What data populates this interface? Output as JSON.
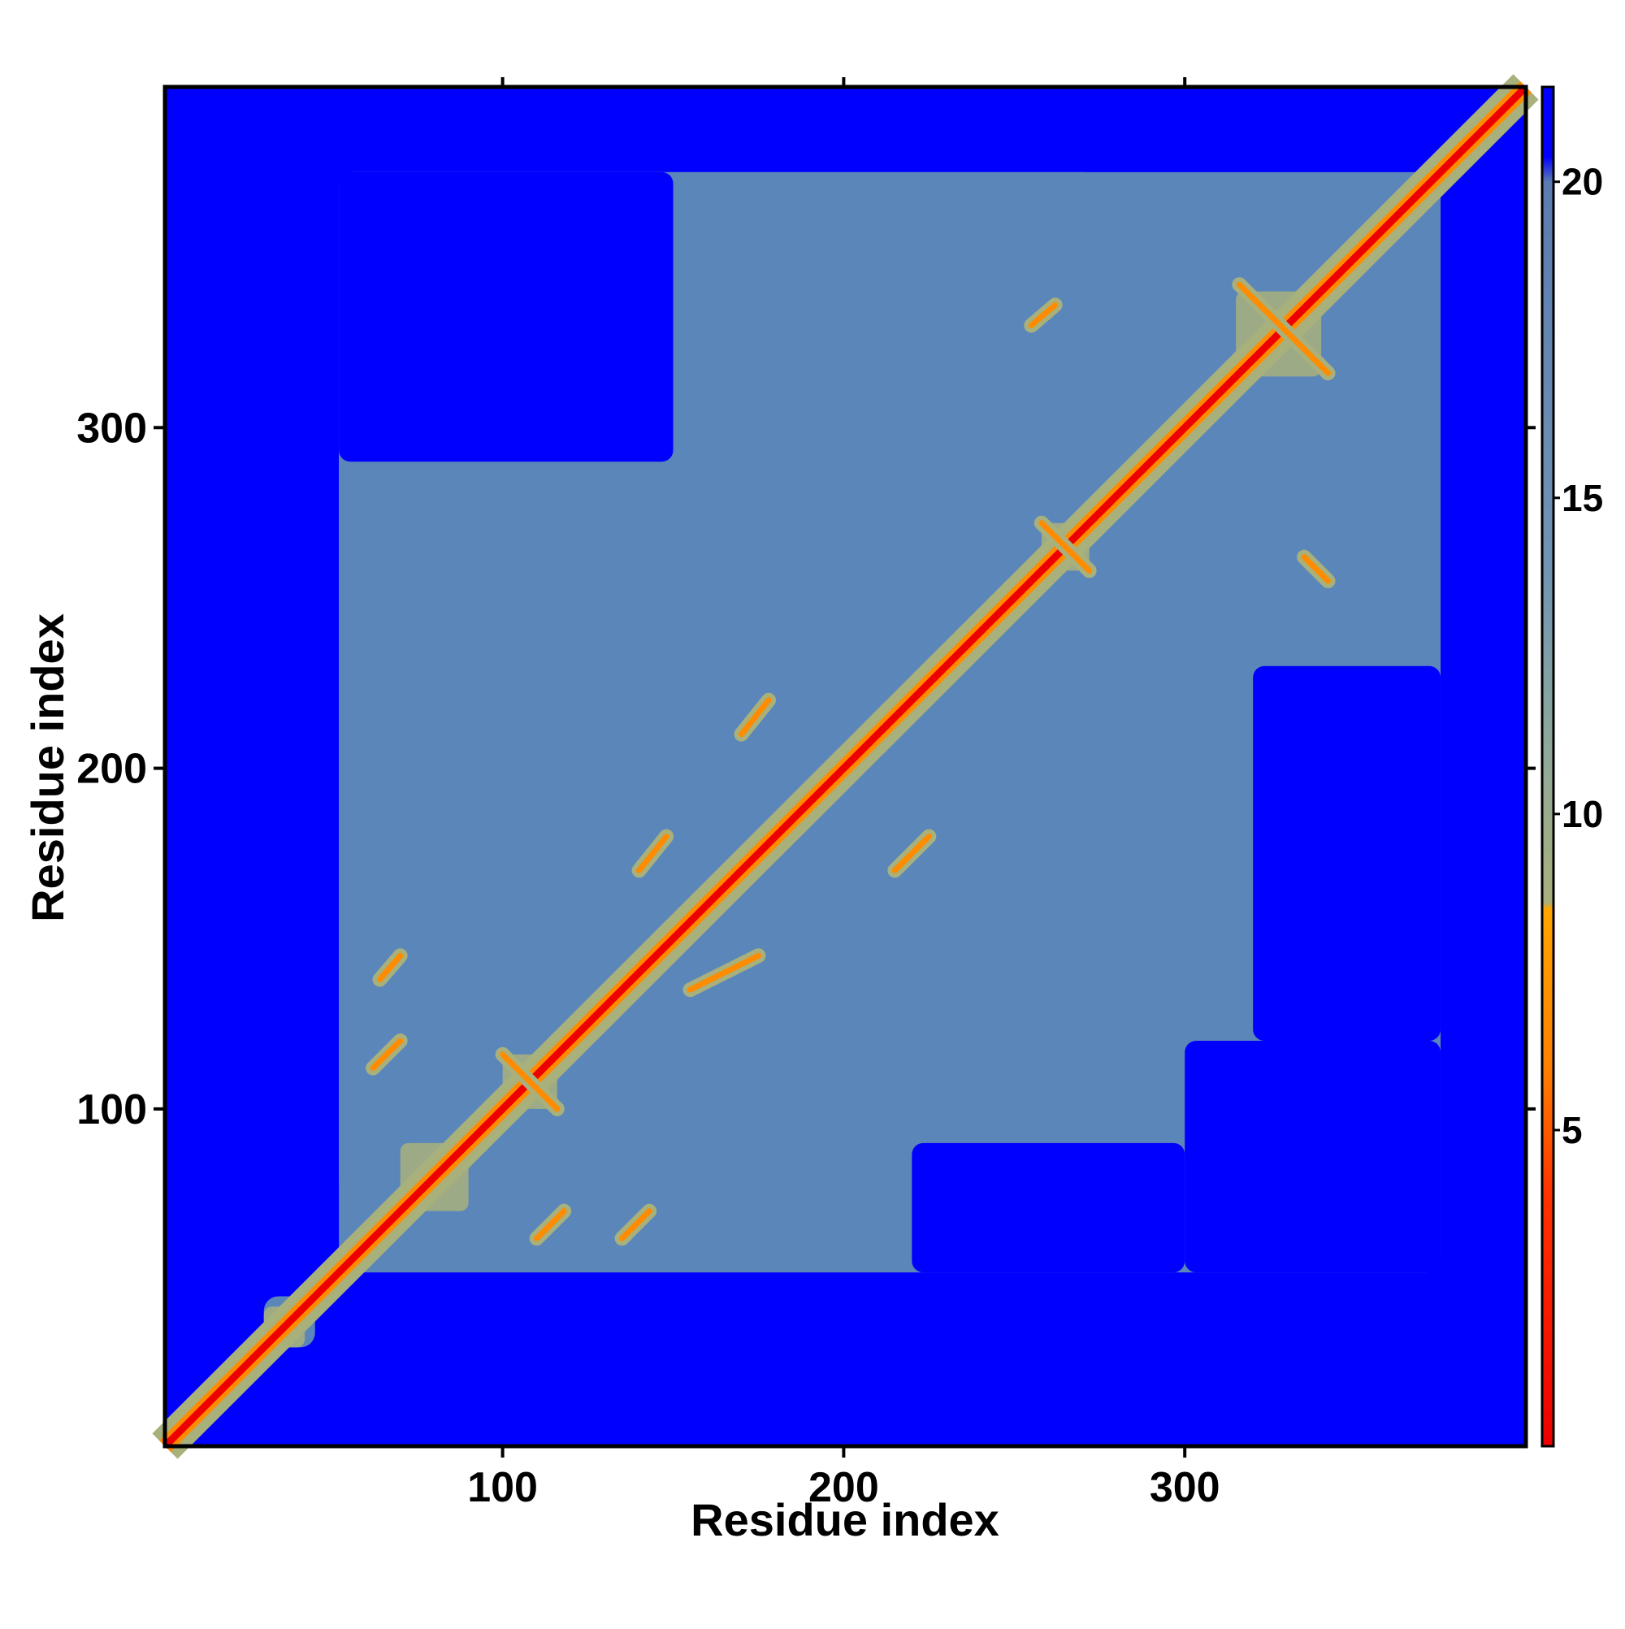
{
  "chart_data": {
    "type": "heatmap",
    "title": "",
    "xlabel": "Residue index",
    "ylabel": "Residue index",
    "xlim": [
      1,
      400
    ],
    "ylim": [
      1,
      400
    ],
    "x_ticks": [
      100,
      200,
      300
    ],
    "y_ticks": [
      100,
      200,
      300
    ],
    "x_tick_labels": [
      "100",
      "200",
      "300"
    ],
    "y_tick_labels": [
      "100",
      "200",
      "300"
    ],
    "grid": false,
    "legend": "colorbar-right",
    "colorbar": {
      "range": [
        0,
        21.5
      ],
      "ticks": [
        5,
        10,
        15,
        20
      ],
      "tick_labels": [
        "5",
        "10",
        "15",
        "20"
      ],
      "stops": [
        {
          "value": 0,
          "color": "#ee0000"
        },
        {
          "value": 4,
          "color": "#ff3300"
        },
        {
          "value": 6,
          "color": "#ff8000"
        },
        {
          "value": 8.5,
          "color": "#ffa500"
        },
        {
          "value": 8.6,
          "color": "#a8b07c"
        },
        {
          "value": 11,
          "color": "#8fa89a"
        },
        {
          "value": 14,
          "color": "#6f94b4"
        },
        {
          "value": 20,
          "color": "#5a7cb0"
        },
        {
          "value": 20.4,
          "color": "#0000ff"
        },
        {
          "value": 21.5,
          "color": "#0000ff"
        }
      ]
    },
    "colors": {
      "background": "#0000ff",
      "mid": "#5b86ba",
      "near": "#a8b07c",
      "contact": "#ff8c00",
      "diagonal": "#ee0000"
    },
    "regions": [
      {
        "x": [
          52,
          375
        ],
        "y": [
          52,
          375
        ],
        "value": 16
      },
      {
        "x": [
          52,
          275
        ],
        "y": [
          75,
          375
        ],
        "value": 16
      },
      {
        "x": [
          30,
          45
        ],
        "y": [
          30,
          45
        ],
        "value": 16
      }
    ],
    "holes": [
      {
        "x": [
          300,
          375
        ],
        "y": [
          52,
          120
        ],
        "value": 21
      },
      {
        "x": [
          52,
          150
        ],
        "y": [
          290,
          375
        ],
        "value": 21
      },
      {
        "x": [
          220,
          300
        ],
        "y": [
          52,
          90
        ],
        "value": 21
      },
      {
        "x": [
          320,
          375
        ],
        "y": [
          120,
          230
        ],
        "value": 21
      }
    ],
    "helix_blocks": [
      {
        "x": [
          100,
          116
        ],
        "y": [
          100,
          116
        ]
      },
      {
        "x": [
          258,
          272
        ],
        "y": [
          258,
          272
        ]
      },
      {
        "x": [
          315,
          340
        ],
        "y": [
          315,
          340
        ]
      },
      {
        "x": [
          70,
          90
        ],
        "y": [
          70,
          90
        ]
      },
      {
        "x": [
          30,
          42
        ],
        "y": [
          30,
          42
        ]
      }
    ],
    "contacts": [
      {
        "x1": 100,
        "y1": 116,
        "x2": 116,
        "y2": 100
      },
      {
        "x1": 258,
        "y1": 272,
        "x2": 272,
        "y2": 258
      },
      {
        "x1": 316,
        "y1": 342,
        "x2": 342,
        "y2": 316
      },
      {
        "x1": 64,
        "y1": 138,
        "x2": 70,
        "y2": 145
      },
      {
        "x1": 62,
        "y1": 112,
        "x2": 70,
        "y2": 120
      },
      {
        "x1": 155,
        "y1": 135,
        "x2": 175,
        "y2": 145
      },
      {
        "x1": 140,
        "y1": 170,
        "x2": 148,
        "y2": 180
      },
      {
        "x1": 215,
        "y1": 170,
        "x2": 225,
        "y2": 180
      },
      {
        "x1": 170,
        "y1": 210,
        "x2": 178,
        "y2": 220
      },
      {
        "x1": 255,
        "y1": 330,
        "x2": 262,
        "y2": 336
      },
      {
        "x1": 335,
        "y1": 262,
        "x2": 342,
        "y2": 255
      },
      {
        "x1": 110,
        "y1": 62,
        "x2": 118,
        "y2": 70
      },
      {
        "x1": 135,
        "y1": 62,
        "x2": 143,
        "y2": 70
      }
    ]
  }
}
